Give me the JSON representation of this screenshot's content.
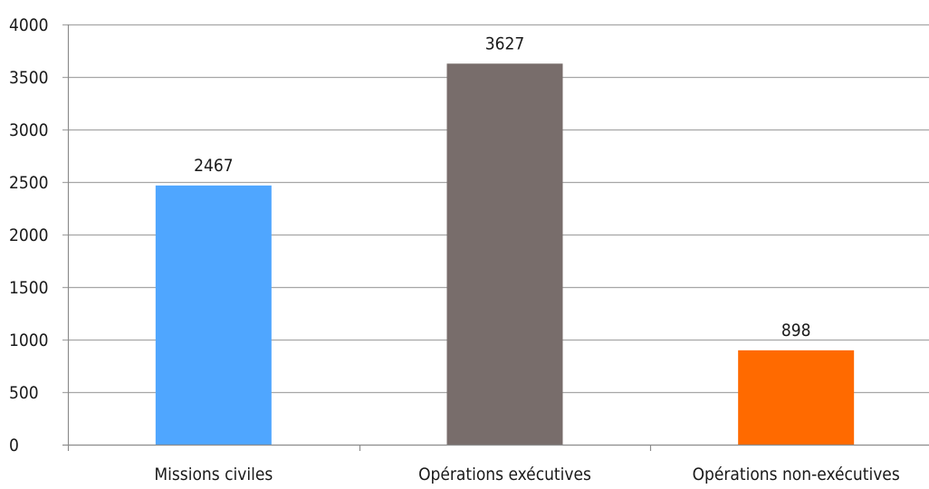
{
  "chart_data": {
    "type": "bar",
    "title": "",
    "xlabel": "",
    "ylabel": "",
    "categories": [
      "Missions civiles",
      "Opérations exécutives",
      "Opérations non-exécutives"
    ],
    "values": [
      2467,
      3627,
      898
    ],
    "data_labels": [
      "2467",
      "3627",
      "898"
    ],
    "bar_colors": [
      "#4fa6ff",
      "#786d6b",
      "#ff6a00"
    ],
    "ylim": [
      0,
      4000
    ],
    "yticks": [
      0,
      500,
      1000,
      1500,
      2000,
      2500,
      3000,
      3500,
      4000
    ],
    "ytick_labels": [
      "0",
      "500",
      "1000",
      "1500",
      "2000",
      "2500",
      "3000",
      "3500",
      "4000"
    ],
    "grid": true,
    "legend": "none"
  }
}
